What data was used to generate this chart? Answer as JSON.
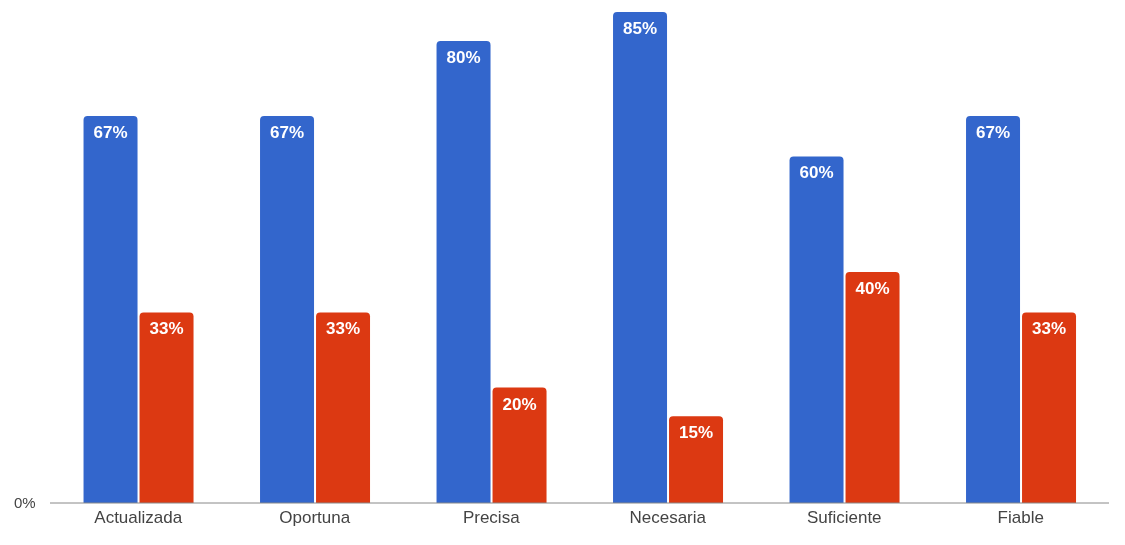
{
  "chart_data": {
    "type": "bar",
    "categories": [
      "Actualizada",
      "Oportuna",
      "Precisa",
      "Necesaria",
      "Suficiente",
      "Fiable"
    ],
    "series": [
      {
        "color": "#3366cc",
        "values": [
          67,
          67,
          80,
          85,
          60,
          67
        ],
        "value_labels": [
          "67%",
          "67%",
          "80%",
          "85%",
          "60%",
          "67%"
        ]
      },
      {
        "color": "#dc3912",
        "values": [
          33,
          33,
          20,
          15,
          40,
          33
        ],
        "value_labels": [
          "33%",
          "33%",
          "20%",
          "15%",
          "40%",
          "33%"
        ]
      }
    ],
    "annotations": [
      "0%"
    ],
    "grid": false,
    "legend": false
  }
}
